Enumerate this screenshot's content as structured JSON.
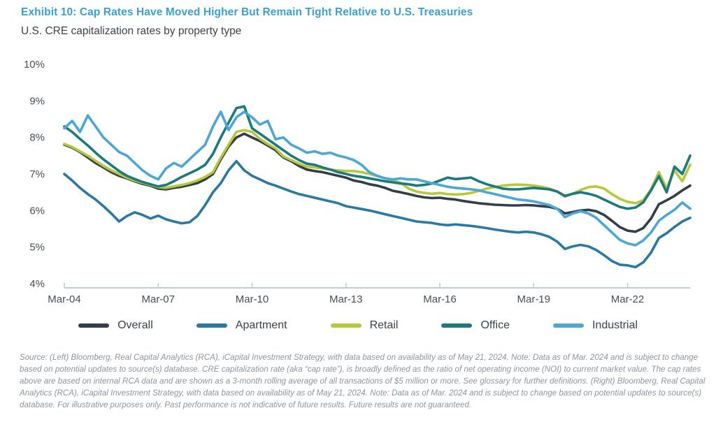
{
  "header": {
    "title": "Exhibit 10: Cap Rates Have Moved Higher But Remain Tight Relative to U.S. Treasuries",
    "subtitle": "U.S. CRE capitalization rates by property type"
  },
  "colors": {
    "title": "#3A9FD1",
    "subtitle": "#3B4248",
    "axis_line": "#B9CFDC",
    "axis_label": "#454F57",
    "legend_label": "#39424A",
    "footer_text": "#8D969E"
  },
  "chart_data": {
    "type": "line",
    "title": "U.S. CRE capitalization rates by property type",
    "unit": "percent",
    "grid": false,
    "legend_position": "bottom",
    "y_axis": {
      "min": 4,
      "max": 10,
      "tick_labels": [
        "10%",
        "9%",
        "8%",
        "7%",
        "6%",
        "5%",
        "4%"
      ],
      "tick_values": [
        10,
        9,
        8,
        7,
        6,
        5,
        4
      ]
    },
    "x_axis": {
      "tick_labels": [
        "Mar-04",
        "Mar-07",
        "Mar-10",
        "Mar-13",
        "Mar-16",
        "Mar-19",
        "Mar-22"
      ],
      "tick_indices": [
        0,
        12,
        24,
        36,
        48,
        60,
        72
      ]
    },
    "categories": [
      "Mar-04",
      "Jun-04",
      "Sep-04",
      "Dec-04",
      "Mar-05",
      "Jun-05",
      "Sep-05",
      "Dec-05",
      "Mar-06",
      "Jun-06",
      "Sep-06",
      "Dec-06",
      "Mar-07",
      "Jun-07",
      "Sep-07",
      "Dec-07",
      "Mar-08",
      "Jun-08",
      "Sep-08",
      "Dec-08",
      "Mar-09",
      "Jun-09",
      "Sep-09",
      "Dec-09",
      "Mar-10",
      "Jun-10",
      "Sep-10",
      "Dec-10",
      "Mar-11",
      "Jun-11",
      "Sep-11",
      "Dec-11",
      "Mar-12",
      "Jun-12",
      "Sep-12",
      "Dec-12",
      "Mar-13",
      "Jun-13",
      "Sep-13",
      "Dec-13",
      "Mar-14",
      "Jun-14",
      "Sep-14",
      "Dec-14",
      "Mar-15",
      "Jun-15",
      "Sep-15",
      "Dec-15",
      "Mar-16",
      "Jun-16",
      "Sep-16",
      "Dec-16",
      "Mar-17",
      "Jun-17",
      "Sep-17",
      "Dec-17",
      "Mar-18",
      "Jun-18",
      "Sep-18",
      "Dec-18",
      "Mar-19",
      "Jun-19",
      "Sep-19",
      "Dec-19",
      "Mar-20",
      "Jun-20",
      "Sep-20",
      "Dec-20",
      "Mar-21",
      "Jun-21",
      "Sep-21",
      "Dec-21",
      "Mar-22",
      "Jun-22",
      "Sep-22",
      "Dec-22",
      "Mar-23",
      "Jun-23",
      "Sep-23",
      "Dec-23",
      "Mar-24"
    ],
    "series": [
      {
        "name": "Overall",
        "color": "#333E48",
        "values": [
          7.8,
          7.72,
          7.6,
          7.45,
          7.3,
          7.18,
          7.05,
          6.95,
          6.88,
          6.8,
          6.73,
          6.68,
          6.6,
          6.58,
          6.62,
          6.65,
          6.7,
          6.75,
          6.85,
          7.0,
          7.4,
          7.75,
          8.0,
          8.1,
          8.0,
          7.9,
          7.78,
          7.65,
          7.45,
          7.35,
          7.22,
          7.12,
          7.08,
          7.05,
          7.0,
          6.95,
          6.9,
          6.82,
          6.78,
          6.72,
          6.68,
          6.62,
          6.54,
          6.5,
          6.45,
          6.4,
          6.36,
          6.34,
          6.35,
          6.32,
          6.3,
          6.26,
          6.23,
          6.2,
          6.18,
          6.16,
          6.15,
          6.14,
          6.14,
          6.15,
          6.14,
          6.12,
          6.1,
          6.05,
          5.92,
          5.96,
          6.0,
          6.02,
          5.98,
          5.88,
          5.72,
          5.55,
          5.45,
          5.42,
          5.52,
          5.78,
          6.17,
          6.28,
          6.4,
          6.55,
          6.68
        ]
      },
      {
        "name": "Apartment",
        "color": "#2979A8",
        "values": [
          7.0,
          6.82,
          6.62,
          6.45,
          6.3,
          6.12,
          5.92,
          5.7,
          5.85,
          5.95,
          5.88,
          5.78,
          5.86,
          5.76,
          5.7,
          5.65,
          5.68,
          5.85,
          6.15,
          6.5,
          6.75,
          7.1,
          7.35,
          7.1,
          6.95,
          6.85,
          6.75,
          6.68,
          6.6,
          6.52,
          6.45,
          6.4,
          6.35,
          6.3,
          6.25,
          6.2,
          6.12,
          6.08,
          6.04,
          6.0,
          5.95,
          5.9,
          5.85,
          5.8,
          5.75,
          5.7,
          5.68,
          5.66,
          5.62,
          5.6,
          5.62,
          5.6,
          5.58,
          5.55,
          5.52,
          5.48,
          5.45,
          5.42,
          5.4,
          5.42,
          5.4,
          5.35,
          5.28,
          5.15,
          4.95,
          5.02,
          5.06,
          5.02,
          4.92,
          4.78,
          4.62,
          4.52,
          4.5,
          4.45,
          4.58,
          4.85,
          5.25,
          5.38,
          5.55,
          5.7,
          5.8
        ]
      },
      {
        "name": "Retail",
        "color": "#B5C93B",
        "values": [
          7.82,
          7.74,
          7.62,
          7.5,
          7.36,
          7.22,
          7.1,
          7.0,
          6.9,
          6.82,
          6.76,
          6.7,
          6.64,
          6.62,
          6.66,
          6.7,
          6.75,
          6.82,
          6.92,
          7.05,
          7.45,
          7.8,
          8.15,
          8.2,
          8.15,
          7.96,
          7.82,
          7.7,
          7.48,
          7.38,
          7.28,
          7.2,
          7.18,
          7.15,
          7.12,
          7.1,
          7.08,
          7.08,
          7.05,
          7.0,
          6.94,
          6.88,
          6.82,
          6.76,
          6.6,
          6.52,
          6.48,
          6.46,
          6.48,
          6.45,
          6.44,
          6.45,
          6.48,
          6.54,
          6.6,
          6.64,
          6.68,
          6.7,
          6.71,
          6.7,
          6.68,
          6.65,
          6.6,
          6.52,
          6.38,
          6.46,
          6.56,
          6.64,
          6.66,
          6.6,
          6.45,
          6.32,
          6.24,
          6.2,
          6.28,
          6.58,
          7.05,
          6.6,
          7.1,
          6.8,
          7.25
        ]
      },
      {
        "name": "Office",
        "color": "#1A7A7E",
        "values": [
          8.3,
          8.15,
          7.96,
          7.78,
          7.58,
          7.4,
          7.24,
          7.08,
          6.95,
          6.86,
          6.78,
          6.72,
          6.66,
          6.7,
          6.8,
          6.92,
          7.02,
          7.12,
          7.25,
          7.55,
          8.0,
          8.4,
          8.8,
          8.85,
          8.25,
          8.1,
          7.95,
          7.8,
          7.65,
          7.5,
          7.38,
          7.28,
          7.25,
          7.18,
          7.12,
          7.05,
          7.0,
          6.95,
          6.92,
          6.88,
          6.84,
          6.8,
          6.77,
          6.74,
          6.72,
          6.68,
          6.7,
          6.74,
          6.82,
          6.9,
          6.86,
          6.88,
          6.9,
          6.8,
          6.72,
          6.66,
          6.6,
          6.58,
          6.58,
          6.6,
          6.62,
          6.6,
          6.58,
          6.52,
          6.4,
          6.46,
          6.5,
          6.46,
          6.4,
          6.3,
          6.2,
          6.1,
          6.05,
          6.08,
          6.22,
          6.55,
          6.94,
          6.5,
          7.2,
          7.0,
          7.5
        ]
      },
      {
        "name": "Industrial",
        "color": "#4BA7D9",
        "values": [
          8.25,
          8.45,
          8.15,
          8.6,
          8.3,
          8.0,
          7.8,
          7.6,
          7.5,
          7.3,
          7.1,
          6.95,
          6.85,
          7.15,
          7.3,
          7.2,
          7.4,
          7.6,
          7.8,
          8.3,
          8.7,
          8.2,
          8.55,
          8.7,
          8.55,
          8.35,
          8.45,
          7.95,
          8.0,
          7.8,
          7.7,
          7.58,
          7.62,
          7.55,
          7.58,
          7.5,
          7.45,
          7.38,
          7.25,
          7.05,
          6.95,
          6.88,
          6.85,
          6.88,
          6.85,
          6.85,
          6.8,
          6.75,
          6.7,
          6.65,
          6.62,
          6.6,
          6.58,
          6.55,
          6.5,
          6.45,
          6.4,
          6.35,
          6.3,
          6.28,
          6.25,
          6.2,
          6.15,
          6.05,
          5.82,
          5.92,
          5.98,
          5.92,
          5.8,
          5.6,
          5.4,
          5.2,
          5.1,
          5.05,
          5.18,
          5.4,
          5.72,
          5.88,
          6.02,
          6.22,
          6.05
        ]
      }
    ]
  },
  "footer": {
    "text": "Source: (Left) Bloomberg, Real Capital Analytics (RCA), iCapital Investment Strategy, with data based on availability as of May 21, 2024. Note: Data as of Mar. 2024 and is subject to change based on potential updates to source(s) database. CRE capitalization rate (aka “cap rate”), is broadly defined as the ratio of net operating income (NOI) to current market value. The cap rates above are based on internal RCA data and are shown as a 3-month rolling average of all transactions of $5 million or more. See glossary for further definitions. (Right) Bloomberg, Real Capital Analytics (RCA), iCapital Investment Strategy, with data based on availability as of May 21, 2024. Note: Data as of Mar. 2024 and is subject to change based on potential updates to source(s) database. For illustrative purposes only. Past performance is not indicative of future results. Future results are not guaranteed."
  }
}
